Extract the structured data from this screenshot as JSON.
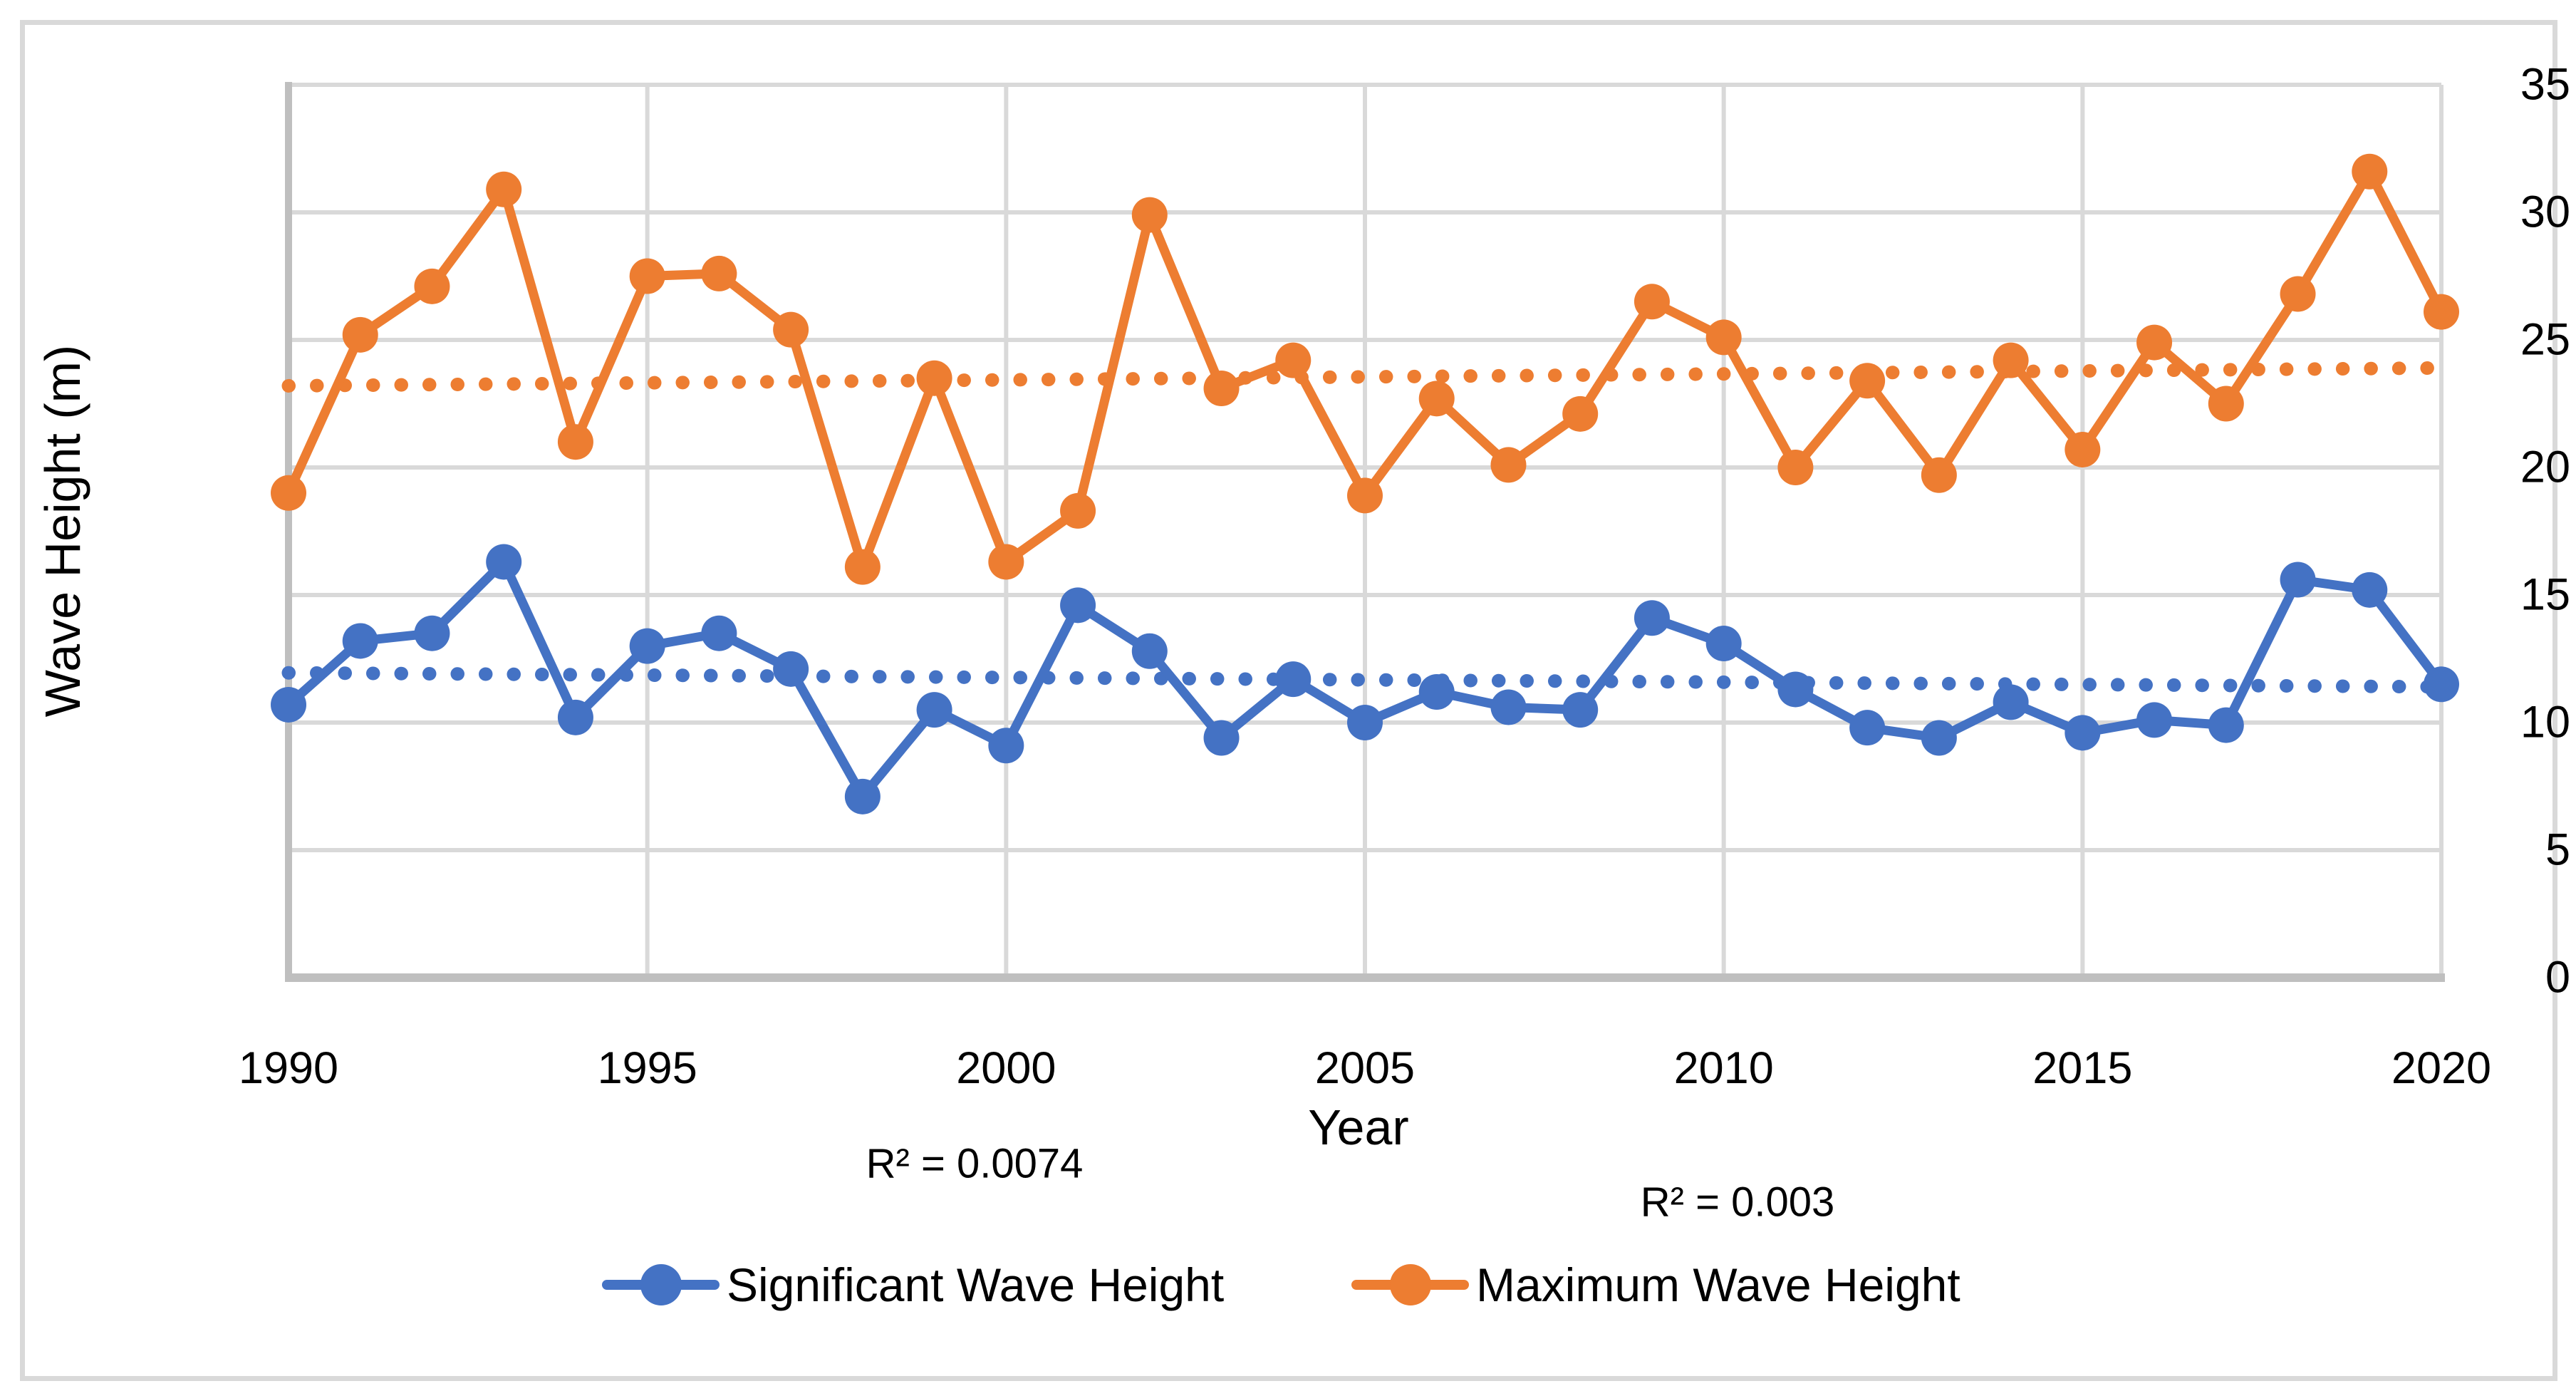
{
  "figure": {
    "background_color": "#ffffff",
    "frame_border_color": "#d9d9d9",
    "gridline_color": "#d9d9d9",
    "axis_line_color": "#bfbfbf",
    "text_color": "#000000"
  },
  "axis_titles": {
    "x": "Year",
    "y": "Wave Height (m)"
  },
  "annotations": {
    "r2_significant": "R² = 0.0074",
    "r2_maximum": "R² = 0.003"
  },
  "chart_data": {
    "type": "line",
    "title": "",
    "xlabel": "Year",
    "ylabel": "Wave Height (m)",
    "x": [
      1990,
      1991,
      1992,
      1993,
      1994,
      1995,
      1996,
      1997,
      1998,
      1999,
      2000,
      2001,
      2002,
      2003,
      2004,
      2005,
      2006,
      2007,
      2008,
      2009,
      2010,
      2011,
      2012,
      2013,
      2014,
      2015,
      2016,
      2017,
      2018,
      2019,
      2020
    ],
    "x_tick_labels": [
      1990,
      1995,
      2000,
      2005,
      2010,
      2015,
      2020
    ],
    "y_tick_labels": [
      0,
      5,
      10,
      15,
      20,
      25,
      30,
      35
    ],
    "ylim": [
      0,
      35
    ],
    "xlim": [
      1990,
      2020
    ],
    "grid": "on",
    "legend_position": "bottom",
    "series": [
      {
        "name": "Significant Wave Height",
        "color": "#4472c4",
        "marker": "circle",
        "values": [
          10.7,
          13.2,
          13.5,
          16.3,
          10.2,
          13.0,
          13.5,
          12.1,
          7.1,
          10.5,
          9.1,
          14.6,
          12.8,
          9.4,
          11.7,
          10.0,
          11.2,
          10.6,
          10.5,
          14.1,
          13.1,
          11.3,
          9.8,
          9.4,
          10.8,
          9.6,
          10.1,
          9.9,
          15.6,
          15.2,
          11.5
        ],
        "trendline": {
          "style": "dotted",
          "start": 11.95,
          "end": 11.4,
          "r2": "R² = 0.0074"
        }
      },
      {
        "name": "Maximum Wave Height",
        "color": "#ed7d31",
        "marker": "circle",
        "values": [
          19.0,
          25.2,
          27.1,
          30.9,
          21.0,
          27.5,
          27.6,
          25.4,
          16.1,
          23.5,
          16.3,
          18.3,
          29.9,
          23.1,
          24.2,
          18.9,
          22.7,
          20.1,
          22.1,
          26.5,
          25.1,
          20.0,
          23.4,
          19.7,
          24.2,
          20.7,
          24.9,
          22.5,
          26.8,
          31.6,
          26.1
        ],
        "trendline": {
          "style": "dotted",
          "start": 23.2,
          "end": 23.9,
          "r2": "R² = 0.003"
        }
      }
    ]
  }
}
